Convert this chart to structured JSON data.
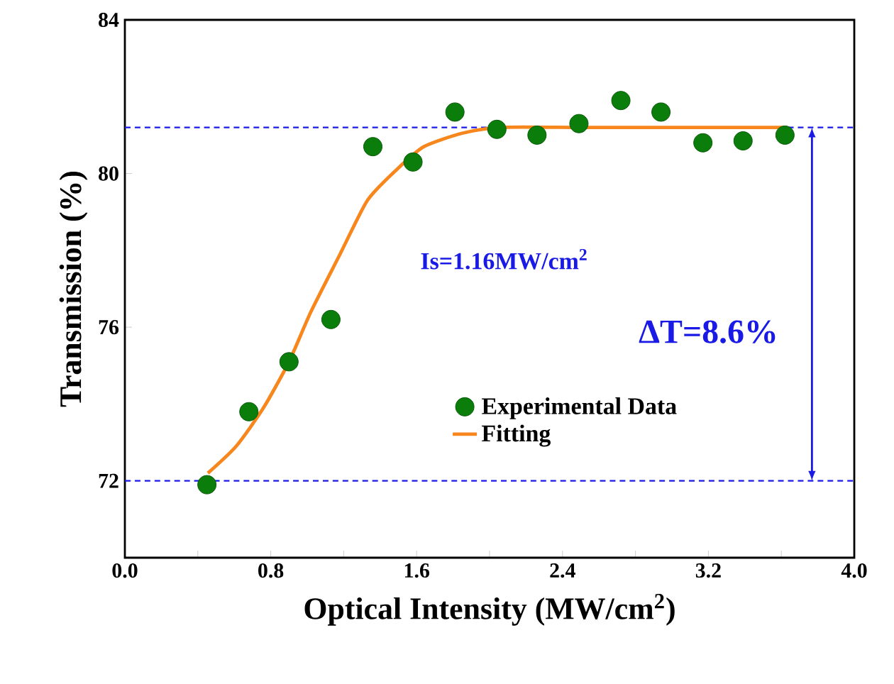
{
  "chart_data": {
    "type": "scatter",
    "xlabel": "Optical Intensity (MW/cm$^{2}$)",
    "ylabel": "Transmission (%)",
    "xlim": [
      0,
      4
    ],
    "ylim": [
      70,
      84
    ],
    "xticks": [
      {
        "value": 0,
        "label": "0.0"
      },
      {
        "value": 0.4,
        "label": null
      },
      {
        "value": 0.8,
        "label": "0.8"
      },
      {
        "value": 1.2,
        "label": null
      },
      {
        "value": 1.6,
        "label": "1.6"
      },
      {
        "value": 2.0,
        "label": null
      },
      {
        "value": 2.4,
        "label": "2.4"
      },
      {
        "value": 2.8,
        "label": null
      },
      {
        "value": 3.2,
        "label": "3.2"
      },
      {
        "value": 3.6,
        "label": null
      },
      {
        "value": 4.0,
        "label": "4.0"
      }
    ],
    "yticks": [
      72,
      76,
      80,
      84
    ],
    "grid": false,
    "legend": "bottom",
    "series": [
      {
        "name": "Experimental Data",
        "marker": "circle",
        "color": "#0a7d0a",
        "x": [
          0.45,
          0.68,
          0.9,
          1.13,
          1.36,
          1.58,
          1.81,
          2.04,
          2.26,
          2.49,
          2.72,
          2.94,
          3.17,
          3.39,
          3.62
        ],
        "values": [
          71.9,
          73.8,
          75.1,
          76.2,
          80.7,
          80.3,
          81.6,
          81.15,
          81.0,
          81.3,
          81.9,
          81.6,
          80.8,
          80.85,
          81.0
        ]
      },
      {
        "name": "Fitting",
        "type": "line",
        "marker": "none",
        "line_style": "solid",
        "color": "#f7861c",
        "x": [
          0.455,
          0.61,
          0.76,
          0.9,
          1.02,
          1.18,
          1.33,
          1.49,
          1.64,
          1.85,
          2.06,
          2.5,
          3.0,
          3.62
        ],
        "values": [
          72.2,
          72.9,
          73.9,
          75.1,
          76.4,
          77.9,
          79.3,
          80.1,
          80.7,
          81.05,
          81.2,
          81.2,
          81.2,
          81.2
        ]
      }
    ],
    "ref_lines": [
      {
        "axis": "y",
        "value": 72,
        "color": "#1a1ae6",
        "line_style": "dashed"
      },
      {
        "axis": "y",
        "value": 81.2,
        "color": "#1a1ae6",
        "line_style": "dashed"
      }
    ],
    "annotations": [
      "Is=1.16MW/cm$^{2}$",
      "ΔT=8.6%"
    ]
  }
}
